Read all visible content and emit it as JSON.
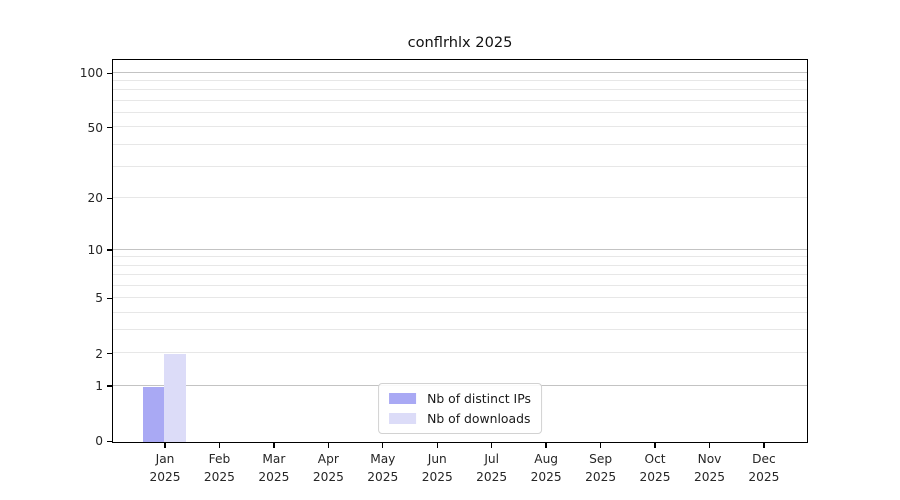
{
  "chart_data": {
    "type": "bar",
    "title": "conflrhlx 2025",
    "categories": [
      "Jan",
      "Feb",
      "Mar",
      "Apr",
      "May",
      "Jun",
      "Jul",
      "Aug",
      "Sep",
      "Oct",
      "Nov",
      "Dec"
    ],
    "x_year_label": "2025",
    "series": [
      {
        "name": "Nb of distinct IPs",
        "color": "#a9a9f4",
        "values": [
          1,
          0,
          0,
          0,
          0,
          0,
          0,
          0,
          0,
          0,
          0,
          0
        ]
      },
      {
        "name": "Nb of downloads",
        "color": "#dcdcf8",
        "values": [
          2,
          0,
          0,
          0,
          0,
          0,
          0,
          0,
          0,
          0,
          0,
          0
        ]
      }
    ],
    "y_axis": {
      "scale": "log1p",
      "ticks": [
        0,
        1,
        2,
        5,
        10,
        20,
        50,
        100
      ],
      "max": 116,
      "major_gridlines": [
        1,
        10,
        100
      ],
      "minor_gridlines": [
        2,
        3,
        4,
        5,
        6,
        7,
        8,
        9,
        20,
        30,
        40,
        50,
        60,
        70,
        80,
        90
      ]
    },
    "x_axis": {
      "tick_count": 12
    },
    "grid": true,
    "legend_position": "lower center",
    "colors": {
      "spine": "#000000",
      "grid_minor": "#e7e7e7",
      "grid_major": "#c3c3c3",
      "text": "#262626"
    }
  }
}
